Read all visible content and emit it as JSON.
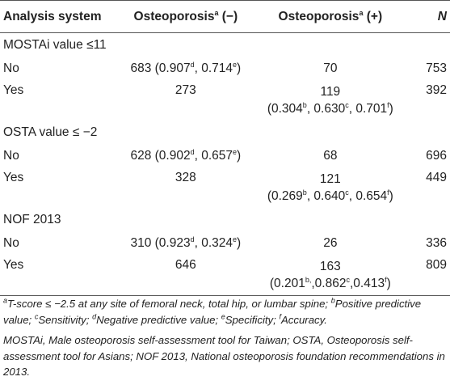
{
  "table": {
    "headers": {
      "system": "Analysis system",
      "neg_label": "Osteoporosis",
      "neg_sup": "a",
      "neg_suffix": " (−)",
      "pos_label": "Osteoporosis",
      "pos_sup": "a",
      "pos_suffix": " (+)",
      "n": "N"
    },
    "sections": [
      {
        "title": "MOSTAi value ≤11",
        "no": {
          "label": "No",
          "neg_count": "683",
          "neg_a": " (0.907",
          "neg_a_sup": "d",
          "neg_b": ", 0.714",
          "neg_b_sup": "e",
          "neg_c": ")",
          "pos": "70",
          "n": "753"
        },
        "yes": {
          "label": "Yes",
          "neg": "273",
          "pos_count": "119",
          "p1": "(0.304",
          "s1": "b",
          "p2": ", 0.630",
          "s2": "c",
          "p3": ", 0.701",
          "s3": "f",
          "p4": ")",
          "n": "392"
        }
      },
      {
        "title": "OSTA value ≤ −2",
        "no": {
          "label": "No",
          "neg_count": "628",
          "neg_a": " (0.902",
          "neg_a_sup": "d",
          "neg_b": ", 0.657",
          "neg_b_sup": "e",
          "neg_c": ")",
          "pos": "68",
          "n": "696"
        },
        "yes": {
          "label": "Yes",
          "neg": "328",
          "pos_count": "121",
          "p1": "(0.269",
          "s1": "b",
          "p2": ", 0.640",
          "s2": "c",
          "p3": ", 0.654",
          "s3": "f",
          "p4": ")",
          "n": "449"
        }
      },
      {
        "title": "NOF 2013",
        "no": {
          "label": "No",
          "neg_count": "310",
          "neg_a": " (0.923",
          "neg_a_sup": "d",
          "neg_b": ", 0.324",
          "neg_b_sup": "e",
          "neg_c": ")",
          "pos": "26",
          "n": "336"
        },
        "yes": {
          "label": "Yes",
          "neg": "646",
          "pos_count": "163",
          "p1": "(0.201",
          "s1": "b,",
          "p2": ",0.862",
          "s2": "c",
          "p3": ",0.413",
          "s3": "f",
          "p4": ")",
          "n": "809"
        }
      }
    ]
  },
  "footnotes": {
    "n1_sup": "a",
    "n1_text": "T-score ≤ −2.5 at any site of femoral neck, total hip, or lumbar spine; ",
    "n1_b_sup": "b",
    "n1_b_text": "Positive predictive value; ",
    "n1_c_sup": "c",
    "n1_c_text": "Sensitivity; ",
    "n1_d_sup": "d",
    "n1_d_text": "Negative predictive value; ",
    "n1_e_sup": "e",
    "n1_e_text": "Specificity; ",
    "n1_f_sup": "f",
    "n1_f_text": "Accuracy.",
    "abbrev": "MOSTAi, Male osteoporosis self-assessment tool for Taiwan; OSTA, Osteoporosis self-assessment tool for Asians; NOF 2013, National osteoporosis foundation recommendations in 2013."
  }
}
